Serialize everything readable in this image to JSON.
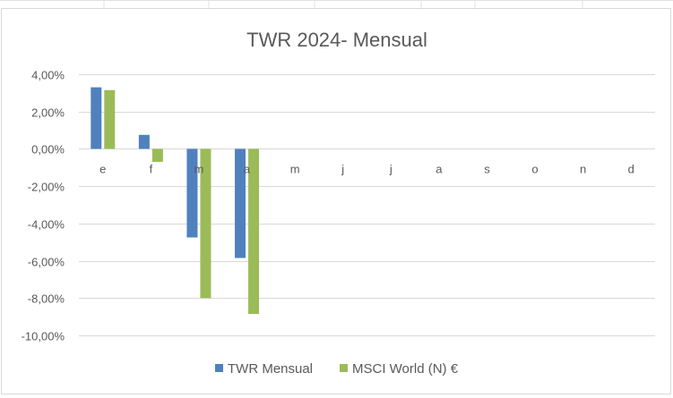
{
  "chart_data": {
    "type": "bar",
    "title": "TWR 2024- Mensual",
    "xlabel": "",
    "ylabel": "",
    "categories": [
      "e",
      "f",
      "m",
      "a",
      "m",
      "j",
      "j",
      "a",
      "s",
      "o",
      "n",
      "d"
    ],
    "series": [
      {
        "name": "TWR Mensual",
        "color": "#4f81bd",
        "values": [
          3.3,
          0.75,
          -4.75,
          -5.85,
          null,
          null,
          null,
          null,
          null,
          null,
          null,
          null
        ]
      },
      {
        "name": "MSCI World (N) €",
        "color": "#9bbb59",
        "values": [
          3.15,
          -0.7,
          -8.0,
          -8.85,
          null,
          null,
          null,
          null,
          null,
          null,
          null,
          null
        ]
      }
    ],
    "ylim": [
      -10,
      4
    ],
    "yticks": [
      "4,00%",
      "2,00%",
      "0,00%",
      "-2,00%",
      "-4,00%",
      "-6,00%",
      "-8,00%",
      "-10,00%"
    ],
    "ytick_values": [
      4,
      2,
      0,
      -2,
      -4,
      -6,
      -8,
      -10
    ],
    "grid": true,
    "legend_position": "bottom"
  }
}
